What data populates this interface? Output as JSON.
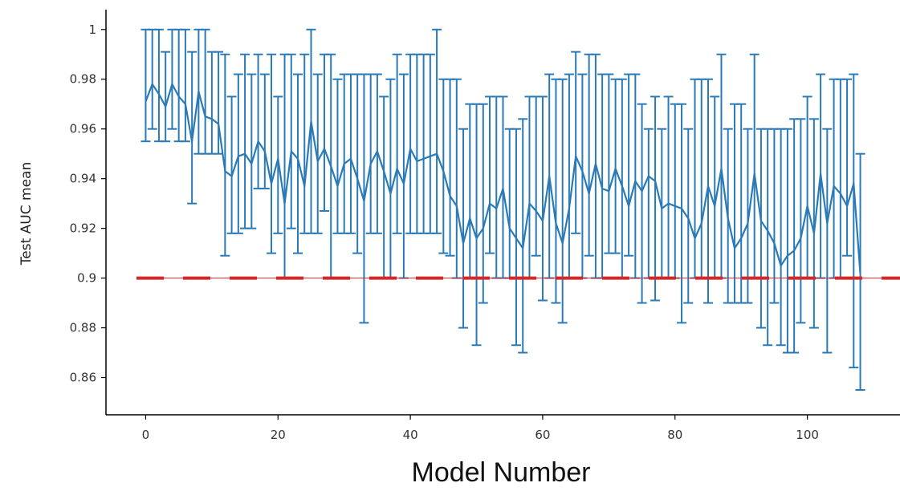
{
  "chart_data": {
    "type": "line",
    "title": "",
    "xlabel": "Model Number",
    "ylabel": "Test AUC mean",
    "xlim": [
      -6,
      114
    ],
    "ylim": [
      0.845,
      1.008
    ],
    "xticks": [
      0,
      20,
      40,
      60,
      80,
      100
    ],
    "xtick_labels": [
      "0",
      "20",
      "40",
      "60",
      "80",
      "100"
    ],
    "yticks": [
      0.86,
      0.88,
      0.9,
      0.92,
      0.94,
      0.96,
      0.98,
      1.0
    ],
    "ytick_labels": [
      "0.86",
      "0.88",
      "0.9",
      "0.92",
      "0.94",
      "0.96",
      "0.98",
      "1"
    ],
    "grid": false,
    "series": [
      {
        "name": "",
        "color": "#2a7ab8",
        "x": [
          0,
          1,
          2,
          3,
          4,
          5,
          6,
          7,
          8,
          9,
          10,
          11,
          12,
          13,
          14,
          15,
          16,
          17,
          18,
          19,
          20,
          21,
          22,
          23,
          24,
          25,
          26,
          27,
          28,
          29,
          30,
          31,
          32,
          33,
          34,
          35,
          36,
          37,
          38,
          39,
          40,
          41,
          42,
          43,
          44,
          45,
          46,
          47,
          48,
          49,
          50,
          51,
          52,
          53,
          54,
          55,
          56,
          57,
          58,
          59,
          60,
          61,
          62,
          63,
          64,
          65,
          66,
          67,
          68,
          69,
          70,
          71,
          72,
          73,
          74,
          75,
          76,
          77,
          78,
          79,
          80,
          81,
          82,
          83,
          84,
          85,
          86,
          87,
          88,
          89,
          90,
          91,
          92,
          93,
          94,
          95,
          96,
          97,
          98,
          99,
          100,
          101,
          102,
          103,
          104,
          105,
          106,
          107,
          108
        ],
        "y": [
          0.971,
          0.978,
          0.974,
          0.969,
          0.978,
          0.973,
          0.97,
          0.955,
          0.975,
          0.965,
          0.964,
          0.962,
          0.943,
          0.941,
          0.949,
          0.95,
          0.946,
          0.955,
          0.951,
          0.938,
          0.948,
          0.93,
          0.951,
          0.948,
          0.937,
          0.963,
          0.947,
          0.952,
          0.945,
          0.937,
          0.946,
          0.948,
          0.94,
          0.931,
          0.946,
          0.951,
          0.943,
          0.934,
          0.944,
          0.938,
          0.952,
          0.947,
          0.948,
          0.949,
          0.95,
          0.943,
          0.933,
          0.929,
          0.914,
          0.924,
          0.916,
          0.92,
          0.93,
          0.928,
          0.936,
          0.92,
          0.916,
          0.912,
          0.93,
          0.927,
          0.923,
          0.941,
          0.922,
          0.914,
          0.928,
          0.949,
          0.943,
          0.934,
          0.946,
          0.936,
          0.935,
          0.944,
          0.937,
          0.929,
          0.939,
          0.935,
          0.941,
          0.939,
          0.928,
          0.93,
          0.929,
          0.928,
          0.924,
          0.916,
          0.922,
          0.937,
          0.929,
          0.944,
          0.924,
          0.912,
          0.916,
          0.922,
          0.942,
          0.923,
          0.919,
          0.914,
          0.905,
          0.909,
          0.911,
          0.916,
          0.929,
          0.918,
          0.942,
          0.922,
          0.937,
          0.934,
          0.929,
          0.938,
          0.902
        ],
        "y_upper": [
          1.0,
          1.0,
          1.0,
          0.991,
          1.0,
          1.0,
          1.0,
          0.991,
          1.0,
          1.0,
          0.991,
          0.991,
          0.99,
          0.973,
          0.982,
          0.99,
          0.982,
          0.99,
          0.982,
          0.99,
          0.973,
          0.99,
          0.99,
          0.982,
          0.99,
          1.0,
          0.982,
          0.99,
          0.99,
          0.98,
          0.982,
          0.982,
          0.982,
          0.982,
          0.982,
          0.982,
          0.973,
          0.98,
          0.99,
          0.982,
          0.99,
          0.99,
          0.99,
          0.99,
          1.0,
          0.98,
          0.98,
          0.98,
          0.96,
          0.97,
          0.97,
          0.97,
          0.973,
          0.973,
          0.973,
          0.96,
          0.96,
          0.964,
          0.973,
          0.973,
          0.973,
          0.982,
          0.98,
          0.98,
          0.982,
          0.991,
          0.982,
          0.99,
          0.99,
          0.982,
          0.982,
          0.98,
          0.98,
          0.982,
          0.982,
          0.97,
          0.96,
          0.973,
          0.96,
          0.973,
          0.97,
          0.97,
          0.96,
          0.98,
          0.98,
          0.98,
          0.973,
          0.99,
          0.96,
          0.97,
          0.97,
          0.96,
          0.99,
          0.96,
          0.96,
          0.96,
          0.96,
          0.96,
          0.964,
          0.964,
          0.973,
          0.964,
          0.982,
          0.96,
          0.98,
          0.98,
          0.98,
          0.982,
          0.95
        ],
        "y_lower": [
          0.955,
          0.96,
          0.955,
          0.955,
          0.96,
          0.955,
          0.955,
          0.93,
          0.95,
          0.95,
          0.95,
          0.95,
          0.909,
          0.918,
          0.918,
          0.92,
          0.92,
          0.936,
          0.936,
          0.91,
          0.918,
          0.9,
          0.92,
          0.91,
          0.918,
          0.918,
          0.918,
          0.927,
          0.9,
          0.918,
          0.918,
          0.918,
          0.91,
          0.882,
          0.918,
          0.918,
          0.9,
          0.9,
          0.918,
          0.9,
          0.918,
          0.918,
          0.918,
          0.918,
          0.918,
          0.91,
          0.909,
          0.9,
          0.88,
          0.9,
          0.873,
          0.89,
          0.91,
          0.9,
          0.9,
          0.9,
          0.873,
          0.87,
          0.9,
          0.909,
          0.891,
          0.9,
          0.89,
          0.882,
          0.9,
          0.918,
          0.9,
          0.909,
          0.9,
          0.9,
          0.91,
          0.91,
          0.9,
          0.909,
          0.9,
          0.89,
          0.9,
          0.891,
          0.9,
          0.9,
          0.9,
          0.882,
          0.89,
          0.9,
          0.9,
          0.89,
          0.9,
          0.9,
          0.89,
          0.89,
          0.89,
          0.89,
          0.9,
          0.88,
          0.873,
          0.89,
          0.873,
          0.87,
          0.87,
          0.882,
          0.9,
          0.88,
          0.9,
          0.87,
          0.9,
          0.9,
          0.909,
          0.864,
          0.855
        ]
      }
    ],
    "reference_line": {
      "y": 0.9,
      "style": "dashed",
      "color": "#d62728"
    }
  }
}
